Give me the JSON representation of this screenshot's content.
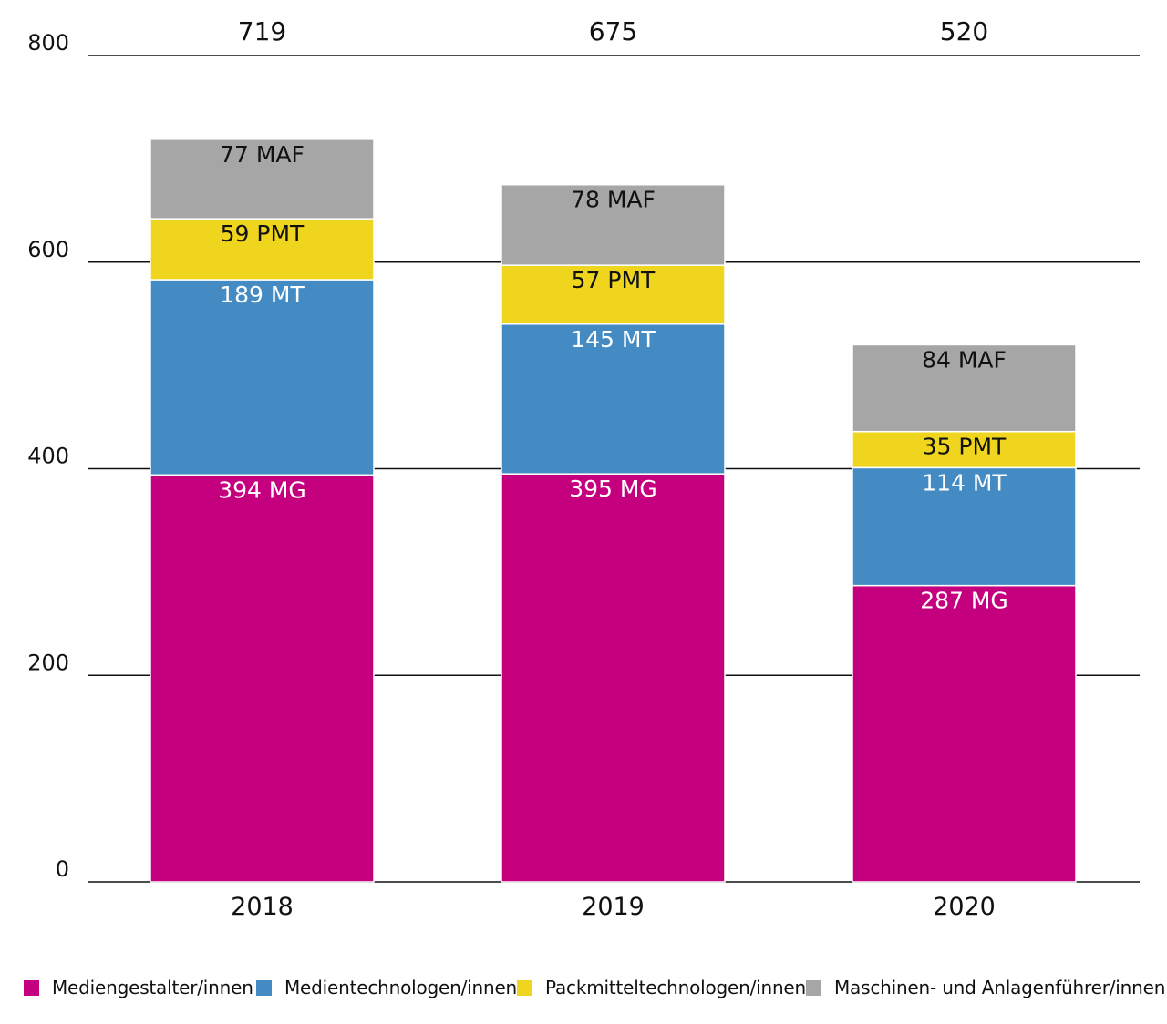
{
  "chart_data": {
    "type": "bar",
    "stacked": true,
    "categories": [
      "2018",
      "2019",
      "2020"
    ],
    "totals": [
      "719",
      "675",
      "520"
    ],
    "ylim": [
      0,
      800
    ],
    "yticks": [
      "0",
      "200",
      "400",
      "600",
      "800"
    ],
    "grid": true,
    "legend_position": "bottom",
    "series": [
      {
        "name": "Mediengestalter/innen",
        "abbr": "MG",
        "color": "#c5007f",
        "text_color": "#ffffff",
        "values": [
          394,
          395,
          287
        ],
        "labels": [
          "394 MG",
          "395 MG",
          "287 MG"
        ]
      },
      {
        "name": "Medientechnologen/innen",
        "abbr": "MT",
        "color": "#438bc2",
        "text_color": "#ffffff",
        "values": [
          189,
          145,
          114
        ],
        "labels": [
          "189 MT",
          "145 MT",
          "114 MT"
        ]
      },
      {
        "name": "Packmitteltechnologen/innen",
        "abbr": "PMT",
        "color": "#efd51e",
        "text_color": "#111111",
        "values": [
          59,
          57,
          35
        ],
        "labels": [
          "59 PMT",
          "57 PMT",
          "35 PMT"
        ]
      },
      {
        "name": "Maschinen- und Anlagenführer/innen",
        "abbr": "MAF",
        "color": "#a6a6a6",
        "text_color": "#111111",
        "values": [
          77,
          78,
          84
        ],
        "labels": [
          "77 MAF",
          "78 MAF",
          "84 MAF"
        ]
      }
    ]
  }
}
